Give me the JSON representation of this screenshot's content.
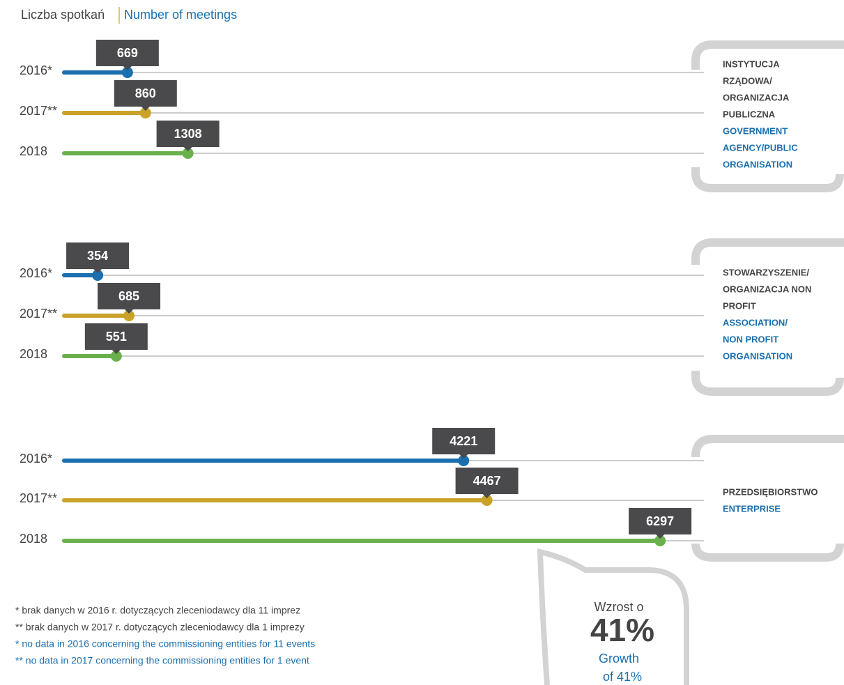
{
  "title_pl": "Liczba spotkań",
  "title_en": "Number of meetings",
  "chart_data": [
    {
      "type": "bar",
      "categories": [
        "2016*",
        "2017**",
        "2018"
      ],
      "values": [
        669,
        860,
        1308
      ],
      "colors": [
        "#1a6faf",
        "#c9a227",
        "#6ab04c"
      ],
      "label_pl": [
        "INSTYTUCJA",
        "RZĄDOWA/",
        "ORGANIZACJA",
        "PUBLICZNA"
      ],
      "label_en": [
        "GOVERNMENT",
        "AGENCY/PUBLIC",
        "ORGANISATION"
      ]
    },
    {
      "type": "bar",
      "categories": [
        "2016*",
        "2017**",
        "2018"
      ],
      "values": [
        354,
        685,
        551
      ],
      "colors": [
        "#1a6faf",
        "#c9a227",
        "#6ab04c"
      ],
      "label_pl": [
        "STOWARZYSZENIE/",
        "ORGANIZACJA NON",
        "PROFIT"
      ],
      "label_en": [
        "ASSOCIATION/",
        "NON PROFIT",
        "ORGANISATION"
      ]
    },
    {
      "type": "bar",
      "categories": [
        "2016*",
        "2017**",
        "2018"
      ],
      "values": [
        4221,
        4467,
        6297
      ],
      "colors": [
        "#1a6faf",
        "#c9a227",
        "#6ab04c"
      ],
      "label_pl": [
        "PRZEDSIĘBIORSTWO"
      ],
      "label_en": [
        "ENTERPRISE"
      ]
    }
  ],
  "footnotes_pl": [
    "* brak danych w 2016 r. dotyczących zleceniodawcy dla 11 imprez",
    "** brak danych w 2017 r. dotyczących zleceniodawcy dla 1 imprezy"
  ],
  "footnotes_en": [
    "* no data in 2016 concerning the commissioning entities for 11 events",
    "** no data in 2017 concerning the commissioning entities for 1 event"
  ],
  "bubble": {
    "pl": "Wzrost o",
    "big": "41%",
    "en1": "Growth",
    "en2": "of 41%"
  }
}
